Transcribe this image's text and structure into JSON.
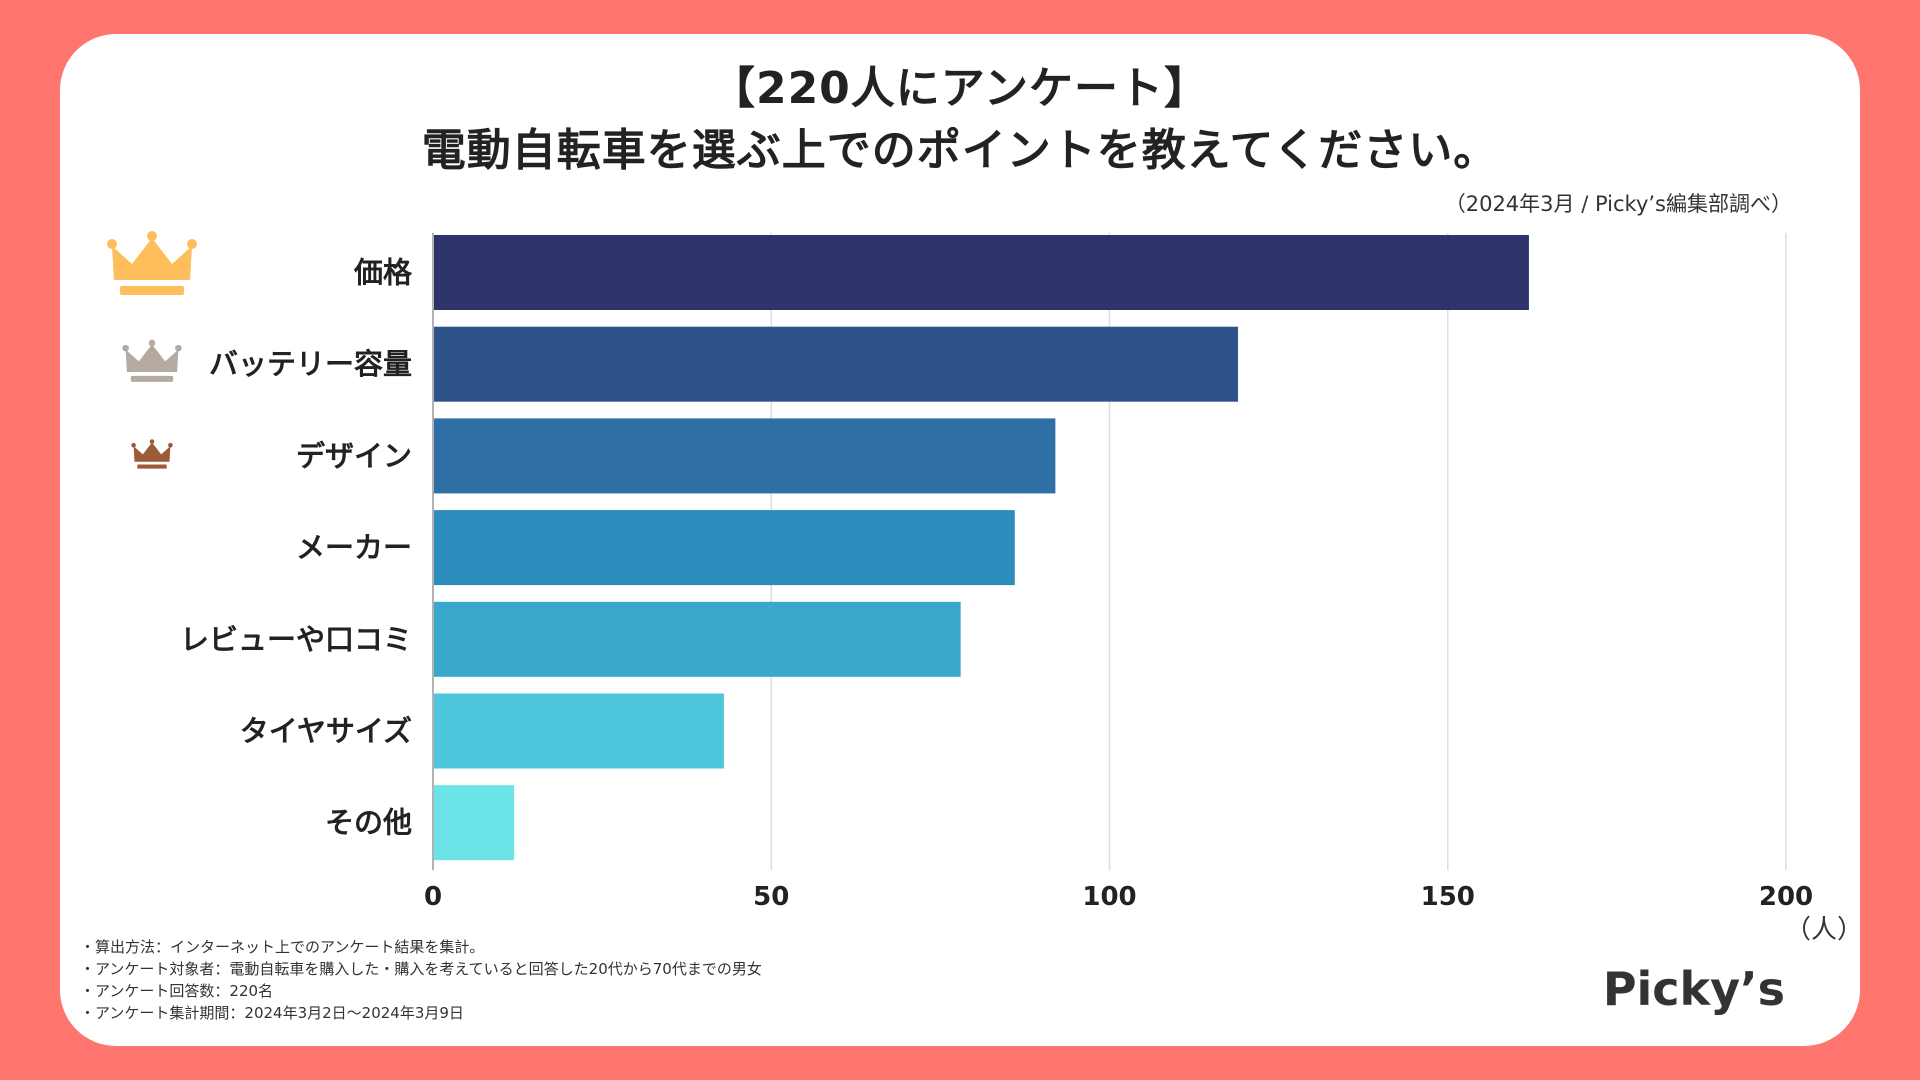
{
  "header": {
    "title_line1": "【220人にアンケート】",
    "title_line2": "電動自転車を選ぶ上でのポイントを教えてください。",
    "source": "（2024年3月 / Picky’s編集部調べ）"
  },
  "chart_data": {
    "type": "bar",
    "orientation": "horizontal",
    "categories": [
      "価格",
      "バッテリー容量",
      "デザイン",
      "メーカー",
      "レビューや口コミ",
      "タイヤサイズ",
      "その他"
    ],
    "values": [
      162,
      119,
      92,
      86,
      78,
      43,
      12
    ],
    "colors": [
      "#2E346B",
      "#30528A",
      "#2E70A6",
      "#2C8CBC",
      "#3AA8CC",
      "#4DC6DC",
      "#6CE3E6"
    ],
    "xlim": [
      0,
      200
    ],
    "xticks": [
      0,
      50,
      100,
      150,
      200
    ],
    "xlabel": "（人）",
    "grid": true,
    "ranking_icons": [
      "crown-gold-icon",
      "crown-silver-icon",
      "crown-bronze-icon"
    ],
    "ranking_colors": [
      "#FFBE5C",
      "#B4AAA0",
      "#9B5A38"
    ]
  },
  "notes": [
    "・算出方法：インターネット上でのアンケート結果を集計。",
    "・アンケート対象者：電動自転車を購入した・購入を考えていると回答した20代から70代までの男女",
    "・アンケート回答数：220名",
    "・アンケート集計期間：2024年3月2日〜2024年3月9日"
  ],
  "logo": "Picky’s"
}
